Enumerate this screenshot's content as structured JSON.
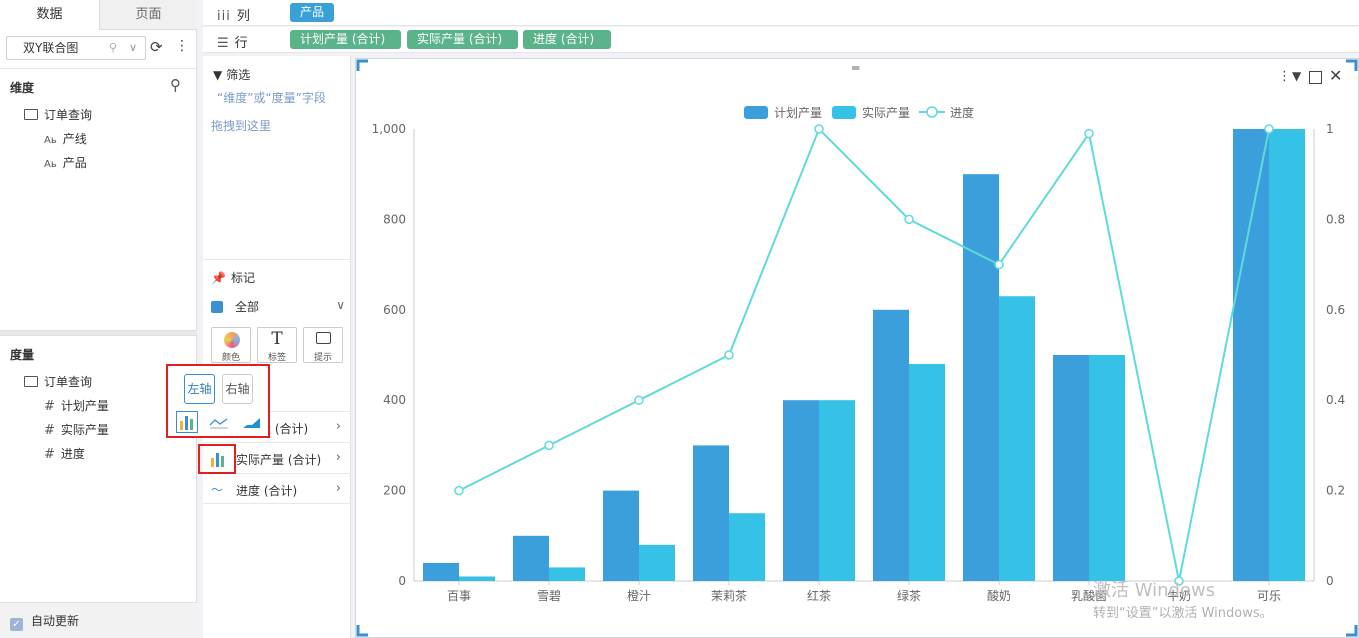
{
  "left_panel": {
    "tabs": [
      "数据",
      "页面"
    ],
    "dataset": "双Y联合图",
    "dimension_header": "维度",
    "dimension_folder": "订单查询",
    "dimensions": [
      "产线",
      "产品"
    ],
    "measure_header": "度量",
    "measure_folder": "订单查询",
    "measures": [
      "计划产量",
      "实际产量",
      "进度"
    ],
    "auto_update": "自动更新"
  },
  "shelves": {
    "column_label": "列",
    "row_label": "行",
    "column_pills": [
      "产品"
    ],
    "row_pills": [
      "计划产量 (合计)",
      "实际产量 (合计)",
      "进度 (合计)"
    ]
  },
  "mid_panel": {
    "filter_title": "筛选",
    "filter_hint_1": "“维度”或“度量”字段",
    "filter_hint_2": "拖拽到这里",
    "marks_title": "标记",
    "marks_all": "全部",
    "mark_buttons": [
      "颜色",
      "标签",
      "提示"
    ],
    "fields": [
      "量 (合计)",
      "实际产量 (合计)",
      "进度 (合计)"
    ]
  },
  "popup": {
    "left_axis": "左轴",
    "right_axis": "右轴"
  },
  "colors": {
    "bar1": "#3b9fdb",
    "bar2": "#36c2e6",
    "line": "#5fdada",
    "pill_blue": "#3aa0d8",
    "pill_green": "#5bb38a"
  },
  "chart_data": {
    "type": "bar",
    "categories": [
      "百事",
      "雪碧",
      "橙汁",
      "茉莉茶",
      "红茶",
      "绿茶",
      "酸奶",
      "乳酸菌",
      "牛奶",
      "可乐"
    ],
    "series": [
      {
        "name": "计划产量",
        "type": "bar",
        "axis": "left",
        "values": [
          40,
          100,
          200,
          300,
          400,
          600,
          900,
          500,
          0,
          1000
        ]
      },
      {
        "name": "实际产量",
        "type": "bar",
        "axis": "left",
        "values": [
          10,
          30,
          80,
          150,
          400,
          480,
          630,
          500,
          0,
          1000
        ]
      },
      {
        "name": "进度",
        "type": "line",
        "axis": "right",
        "values": [
          0.2,
          0.3,
          0.4,
          0.5,
          1,
          0.8,
          0.7,
          0.99,
          0,
          1
        ]
      }
    ],
    "left_axis_ticks": [
      "0",
      "200",
      "400",
      "600",
      "800",
      "1,000"
    ],
    "right_axis_ticks": [
      "0",
      "0.2",
      "0.4",
      "0.6",
      "0.8",
      "1"
    ],
    "ylim_left": [
      0,
      1000
    ],
    "ylim_right": [
      0,
      1
    ],
    "legend": "top-center"
  },
  "watermark": {
    "line1": "激活 Windows",
    "line2": "转到“设置”以激活 Windows。"
  }
}
